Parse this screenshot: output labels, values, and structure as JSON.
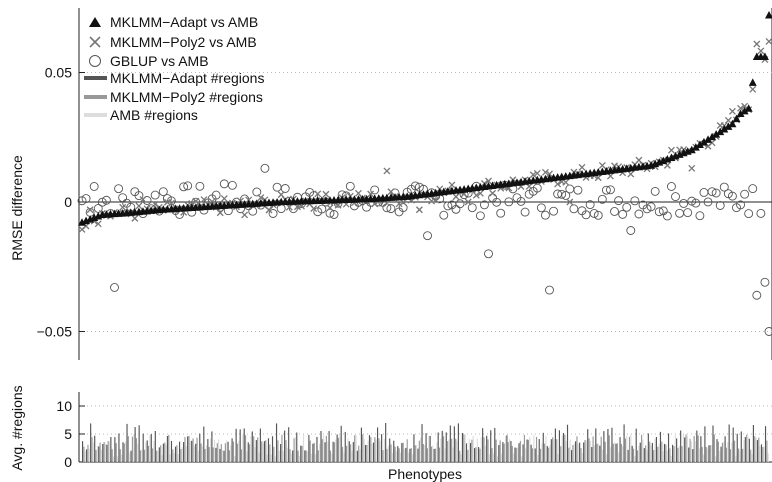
{
  "chart_data": [
    {
      "type": "scatter",
      "ylabel": "RMSE difference",
      "xlabel": "",
      "ylim": [
        -0.06,
        0.075
      ],
      "y_ticks": [
        -0.05,
        0,
        0.05
      ],
      "y_tick_labels": [
        "−0.05",
        "0",
        "0.05"
      ],
      "grid": "dotted horizontal lines at y-ticks",
      "zero_line": true,
      "legend_placement": "top-left",
      "legend": [
        {
          "label": "MKLMM−Adapt vs AMB",
          "marker": "filled-triangle",
          "color": "#222222"
        },
        {
          "label": "MKLMM−Poly2 vs AMB",
          "marker": "x",
          "color": "#777777"
        },
        {
          "label": "GBLUP vs AMB",
          "marker": "open-circle",
          "color": "#555555"
        },
        {
          "label": "MKLMM−Adapt #regions",
          "marker": "line",
          "color": "#555555"
        },
        {
          "label": "MKLMM−Poly2 #regions",
          "marker": "line",
          "color": "#999999"
        },
        {
          "label": "AMB #regions",
          "marker": "line",
          "color": "#dddddd"
        }
      ],
      "n_phenotypes": 170,
      "series": [
        {
          "name": "MKLMM−Adapt vs AMB",
          "note": "sorted ascending; values listed at every 10th phenotype and tail",
          "key_points": [
            [
              0,
              -0.008
            ],
            [
              5,
              -0.005
            ],
            [
              10,
              -0.0045
            ],
            [
              20,
              -0.003
            ],
            [
              30,
              -0.002
            ],
            [
              40,
              -0.001
            ],
            [
              50,
              0.0
            ],
            [
              60,
              0.0005
            ],
            [
              70,
              0.001
            ],
            [
              80,
              0.002
            ],
            [
              90,
              0.004
            ],
            [
              100,
              0.006
            ],
            [
              110,
              0.008
            ],
            [
              120,
              0.01
            ],
            [
              130,
              0.012
            ],
            [
              140,
              0.014
            ],
            [
              150,
              0.02
            ],
            [
              155,
              0.025
            ],
            [
              160,
              0.03
            ],
            [
              162,
              0.034
            ],
            [
              164,
              0.036
            ],
            [
              166,
              0.056
            ],
            [
              168,
              0.056
            ],
            [
              169,
              0.072
            ]
          ]
        },
        {
          "name": "MKLMM−Poly2 vs AMB",
          "note": "scattered around the Adapt curve; notable values",
          "points": [
            [
              2,
              -0.003
            ],
            [
              8,
              -0.004
            ],
            [
              15,
              0.001
            ],
            [
              25,
              -0.004
            ],
            [
              40,
              -0.005
            ],
            [
              60,
              0.003
            ],
            [
              75,
              0.012
            ],
            [
              83,
              -0.003
            ],
            [
              95,
              0.0
            ],
            [
              110,
              0.006
            ],
            [
              120,
              0.0
            ],
            [
              130,
              0.01
            ],
            [
              140,
              0.015
            ],
            [
              145,
              0.02
            ],
            [
              150,
              0.013
            ],
            [
              160,
              0.035
            ],
            [
              163,
              0.037
            ],
            [
              166,
              0.061
            ],
            [
              168,
              0.055
            ],
            [
              169,
              0.062
            ]
          ]
        },
        {
          "name": "GBLUP vs AMB",
          "note": "scattered; notable outliers",
          "points": [
            [
              3,
              0.006
            ],
            [
              8,
              -0.033
            ],
            [
              20,
              0.004
            ],
            [
              35,
              0.007
            ],
            [
              45,
              0.013
            ],
            [
              55,
              0.002
            ],
            [
              70,
              -0.002
            ],
            [
              85,
              -0.013
            ],
            [
              100,
              -0.02
            ],
            [
              110,
              0.003
            ],
            [
              115,
              -0.034
            ],
            [
              125,
              -0.001
            ],
            [
              135,
              -0.011
            ],
            [
              145,
              0.006
            ],
            [
              155,
              0.004
            ],
            [
              163,
              0.003
            ],
            [
              166,
              -0.036
            ],
            [
              168,
              -0.031
            ],
            [
              169,
              -0.05
            ]
          ]
        }
      ]
    },
    {
      "type": "bar",
      "ylabel": "Avg. #regions",
      "xlabel": "Phenotypes",
      "ylim": [
        0,
        12
      ],
      "y_ticks": [
        0,
        5,
        10
      ],
      "y_tick_labels": [
        "0",
        "5",
        "10"
      ],
      "grid": "dotted horizontal lines at y-ticks",
      "n_phenotypes": 170,
      "series": [
        {
          "name": "MKLMM−Adapt #regions",
          "color": "#555555",
          "typical_range": [
            2,
            7
          ]
        },
        {
          "name": "MKLMM−Poly2 #regions",
          "color": "#999999",
          "typical_range": [
            2,
            5
          ]
        },
        {
          "name": "AMB #regions",
          "color": "#dddddd",
          "typical_range": [
            1,
            5
          ]
        }
      ]
    }
  ]
}
